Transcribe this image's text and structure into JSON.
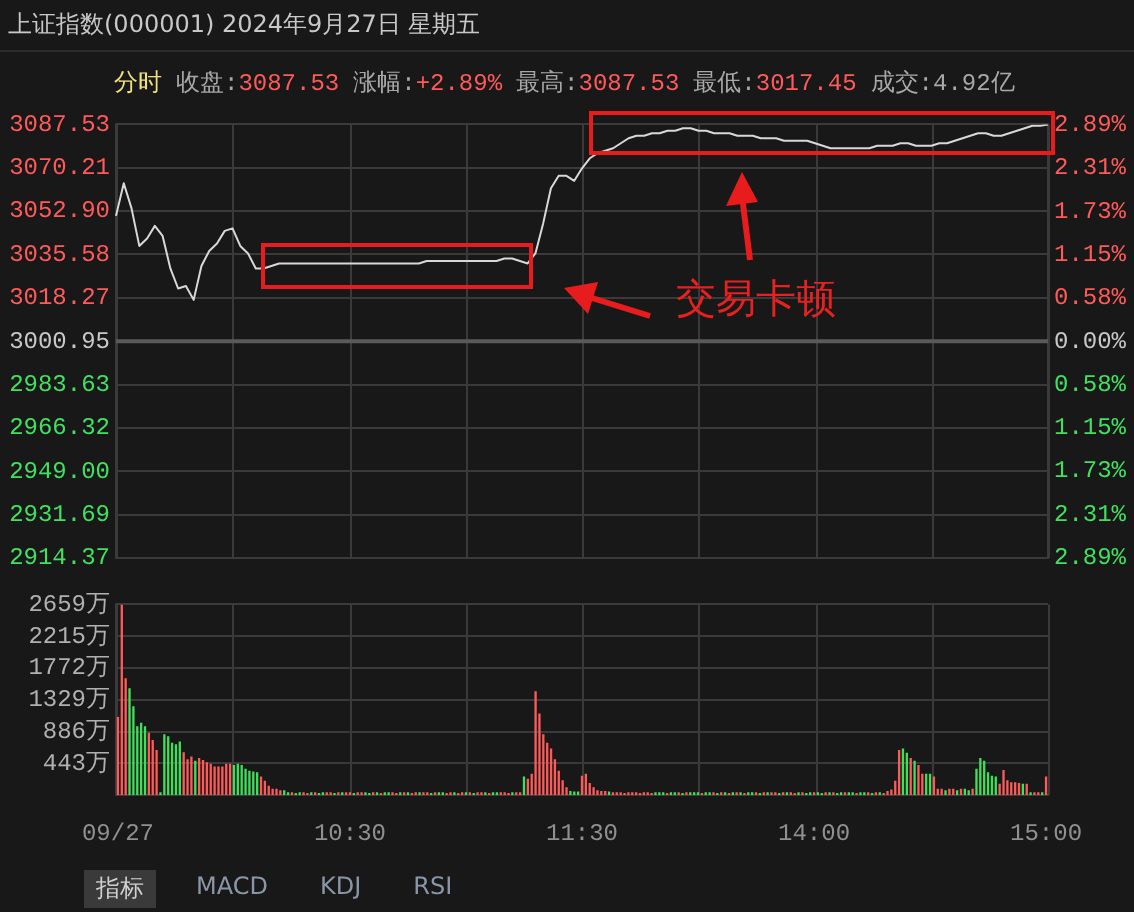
{
  "chart_data": [
    {
      "type": "line",
      "title": "上证指数(000001) 2024年9月27日 星期五",
      "subtitle": "分时 收盘:3087.53 涨幅:+2.89% 最高:3087.53 最低:3017.45 成交:4.92亿",
      "annotations": [
        "交易卡顿"
      ],
      "categories": [
        null,
        null,
        null,
        null,
        null,
        null,
        null,
        null,
        null,
        null,
        null,
        null,
        null,
        null,
        null,
        null,
        null,
        null,
        null,
        null,
        null,
        null,
        null,
        null,
        null,
        null,
        null,
        null,
        null,
        null,
        null,
        null,
        null,
        null,
        null,
        null,
        null,
        null,
        null,
        null,
        null,
        null,
        null,
        null,
        null,
        null,
        null,
        null,
        null,
        null,
        null,
        null,
        null,
        null,
        null,
        null,
        null,
        null,
        null,
        null,
        null,
        null,
        null,
        null,
        null,
        null,
        null,
        null,
        null,
        null,
        null,
        null,
        null,
        null,
        null,
        null,
        null,
        null,
        null,
        null,
        null,
        null,
        null,
        null,
        null,
        null,
        null,
        null,
        null,
        null,
        null,
        null,
        null,
        null,
        null,
        null,
        null,
        null,
        null,
        null,
        null,
        null,
        null,
        null,
        null,
        null,
        null,
        null,
        null,
        null,
        null,
        null,
        null,
        null,
        null,
        null,
        null,
        null,
        null,
        null,
        null
      ],
      "series": [
        {
          "color": "#d8d8d8",
          "values": [
            3051,
            3064,
            3054,
            3039,
            3042,
            3047,
            3043,
            3030,
            3022,
            3023,
            3017.45,
            3031,
            3037,
            3040,
            3045,
            3046,
            3039,
            3036,
            3030,
            3030,
            3031,
            3032,
            3032,
            3032,
            3032,
            3032,
            3032,
            3032,
            3032,
            3032,
            3032,
            3032,
            3032,
            3032,
            3032,
            3032,
            3032,
            3032,
            3032,
            3032,
            3033,
            3033,
            3033,
            3033,
            3033,
            3033,
            3033,
            3033,
            3033,
            3033,
            3034,
            3034,
            3033,
            3032,
            3036,
            3048,
            3062,
            3067,
            3067,
            3065,
            3070,
            3074,
            3076,
            3077,
            3078,
            3080,
            3082,
            3083,
            3083,
            3084,
            3084,
            3085,
            3085,
            3086,
            3086,
            3085,
            3085,
            3084,
            3084,
            3084,
            3083,
            3083,
            3083,
            3082,
            3082,
            3082,
            3081,
            3081,
            3081,
            3081,
            3080,
            3079,
            3078,
            3078,
            3078,
            3078,
            3078,
            3078,
            3079,
            3079,
            3079,
            3080,
            3080,
            3079,
            3079,
            3079,
            3080,
            3080,
            3081,
            3082,
            3083,
            3084,
            3084,
            3083,
            3083,
            3084,
            3085,
            3086,
            3087,
            3087,
            3087.53
          ]
        }
      ],
      "ylim": [
        2914.37,
        3087.53
      ],
      "yticks": [
        {
          "value": 2914.37,
          "label": "2914.37"
        },
        {
          "value": 2931.69,
          "label": "2931.69"
        },
        {
          "value": 2949,
          "label": "2949.00"
        },
        {
          "value": 2966.32,
          "label": "2966.32"
        },
        {
          "value": 2983.63,
          "label": "2983.63"
        },
        {
          "value": 3000.95,
          "label": "3000.95"
        },
        {
          "value": 3018.27,
          "label": "3018.27"
        },
        {
          "value": 3035.58,
          "label": "3035.58"
        },
        {
          "value": 3052.9,
          "label": "3052.90"
        },
        {
          "value": 3070.21,
          "label": "3070.21"
        },
        {
          "value": 3087.53,
          "label": "3087.53"
        }
      ],
      "y2lim": [
        -2.89,
        2.89
      ],
      "y2ticks": [
        {
          "value": -2.89,
          "label": "2.89%"
        },
        {
          "value": -2.31,
          "label": "2.31%"
        },
        {
          "value": -1.73,
          "label": "1.73%"
        },
        {
          "value": -1.15,
          "label": "1.15%"
        },
        {
          "value": -0.58,
          "label": "0.58%"
        },
        {
          "value": 0,
          "label": "0.00%"
        },
        {
          "value": 0.58,
          "label": "0.58%"
        },
        {
          "value": 1.15,
          "label": "1.15%"
        },
        {
          "value": 1.73,
          "label": "1.73%"
        },
        {
          "value": 2.31,
          "label": "2.31%"
        },
        {
          "value": 2.89,
          "label": "2.89%"
        }
      ],
      "ref_lines": [
        {
          "axis": "y",
          "value": 3000.95,
          "color": "#5a5a5a"
        }
      ],
      "grid": true,
      "marker": "none",
      "line_style": "solid"
    },
    {
      "type": "bar",
      "annotations": [
        "指标",
        "MACD",
        "KDJ",
        "RSI"
      ],
      "categories": [
        "09/27",
        null,
        null,
        null,
        null,
        null,
        null,
        null,
        null,
        null,
        null,
        null,
        null,
        null,
        null,
        null,
        null,
        null,
        null,
        null,
        null,
        null,
        null,
        null,
        null,
        null,
        null,
        null,
        null,
        null,
        null,
        null,
        null,
        null,
        null,
        null,
        null,
        null,
        null,
        null,
        null,
        null,
        null,
        null,
        null,
        null,
        null,
        null,
        null,
        null,
        null,
        null,
        null,
        null,
        null,
        null,
        null,
        null,
        null,
        null,
        "10:30",
        null,
        null,
        null,
        null,
        null,
        null,
        null,
        null,
        null,
        null,
        null,
        null,
        null,
        null,
        null,
        null,
        null,
        null,
        null,
        null,
        null,
        null,
        null,
        null,
        null,
        null,
        null,
        null,
        null,
        null,
        null,
        null,
        null,
        null,
        null,
        null,
        null,
        null,
        null,
        null,
        null,
        null,
        null,
        null,
        null,
        null,
        null,
        null,
        null,
        null,
        null,
        null,
        null,
        null,
        null,
        null,
        null,
        null,
        null,
        "11:30",
        null,
        null,
        null,
        null,
        null,
        null,
        null,
        null,
        null,
        null,
        null,
        null,
        null,
        null,
        null,
        null,
        null,
        null,
        null,
        null,
        null,
        null,
        null,
        null,
        null,
        null,
        null,
        null,
        null,
        null,
        null,
        null,
        null,
        null,
        null,
        null,
        null,
        null,
        null,
        null,
        null,
        null,
        null,
        null,
        null,
        null,
        null,
        null,
        null,
        null,
        null,
        null,
        null,
        null,
        null,
        null,
        null,
        null,
        null,
        "14:00",
        null,
        null,
        null,
        null,
        null,
        null,
        null,
        null,
        null,
        null,
        null,
        null,
        null,
        null,
        null,
        null,
        null,
        null,
        null,
        null,
        null,
        null,
        null,
        null,
        null,
        null,
        null,
        null,
        null,
        null,
        null,
        null,
        null,
        null,
        null,
        null,
        null,
        null,
        null,
        null,
        null,
        null,
        null,
        null,
        null,
        null,
        null,
        null,
        null,
        null,
        null,
        null,
        null,
        null,
        null,
        null,
        null,
        null,
        null,
        "15:00"
      ],
      "values": [
        1090,
        2659,
        1630,
        1490,
        1240,
        960,
        1010,
        960,
        870,
        770,
        630,
        40,
        850,
        820,
        730,
        710,
        750,
        600,
        500,
        540,
        480,
        520,
        490,
        460,
        440,
        400,
        400,
        400,
        440,
        440,
        420,
        440,
        420,
        370,
        340,
        330,
        320,
        260,
        200,
        130,
        90,
        90,
        70,
        70,
        40,
        40,
        30,
        40,
        40,
        30,
        40,
        40,
        30,
        40,
        40,
        40,
        30,
        40,
        40,
        40,
        40,
        30,
        40,
        40,
        40,
        30,
        40,
        40,
        30,
        40,
        40,
        40,
        30,
        40,
        40,
        40,
        30,
        40,
        40,
        40,
        40,
        30,
        40,
        40,
        40,
        30,
        40,
        40,
        30,
        40,
        40,
        40,
        30,
        40,
        40,
        40,
        30,
        40,
        40,
        40,
        40,
        30,
        40,
        40,
        40,
        260,
        230,
        300,
        1450,
        1140,
        850,
        730,
        650,
        500,
        340,
        210,
        110,
        60,
        50,
        50,
        270,
        300,
        170,
        110,
        70,
        60,
        60,
        50,
        40,
        40,
        40,
        30,
        40,
        40,
        40,
        30,
        40,
        40,
        30,
        40,
        40,
        40,
        30,
        40,
        40,
        40,
        30,
        40,
        40,
        40,
        40,
        30,
        40,
        40,
        40,
        30,
        40,
        40,
        30,
        40,
        40,
        40,
        30,
        40,
        40,
        40,
        30,
        40,
        40,
        40,
        40,
        30,
        40,
        40,
        40,
        30,
        40,
        40,
        30,
        40,
        40,
        40,
        30,
        40,
        40,
        40,
        30,
        40,
        40,
        40,
        40,
        30,
        40,
        40,
        40,
        30,
        40,
        40,
        30,
        60,
        80,
        200,
        630,
        650,
        590,
        520,
        480,
        420,
        300,
        300,
        300,
        260,
        90,
        90,
        70,
        90,
        90,
        70,
        90,
        90,
        70,
        90,
        370,
        520,
        480,
        320,
        270,
        260,
        160,
        350,
        210,
        180,
        180,
        170,
        160,
        160,
        40,
        40,
        40,
        40,
        260
      ],
      "colors": [
        "#ff5a5a",
        "#ff5a5a",
        "#ff5a5a",
        "#3ee05a",
        "#3ee05a",
        "#3ee05a",
        "#3ee05a",
        "#3ee05a",
        "#ff5a5a",
        "#ff5a5a",
        "#ff5a5a",
        "#3ee05a",
        "#3ee05a",
        "#3ee05a",
        "#3ee05a",
        "#3ee05a",
        "#3ee05a",
        "#ff5a5a",
        "#ff5a5a",
        "#ff5a5a",
        "#3ee05a",
        "#ff5a5a",
        "#ff5a5a",
        "#ff5a5a",
        "#ff5a5a",
        "#ff5a5a",
        "#ff5a5a",
        "#ff5a5a",
        "#ff5a5a",
        "#ff5a5a",
        "#3ee05a",
        "#3ee05a",
        "#3ee05a",
        "#3ee05a",
        "#3ee05a",
        "#3ee05a",
        "#3ee05a",
        "#ff5a5a",
        "#ff5a5a",
        "#ff5a5a",
        "#ff5a5a",
        "#ff5a5a",
        "#ff5a5a",
        "#3ee05a",
        "#3ee05a",
        "#ff5a5a",
        "#3ee05a",
        "#3ee05a",
        "#ff5a5a",
        "#ff5a5a",
        "#3ee05a",
        "#ff5a5a",
        "#3ee05a",
        "#3ee05a",
        "#ff5a5a",
        "#ff5a5a",
        "#3ee05a",
        "#ff5a5a",
        "#3ee05a",
        "#ff5a5a",
        "#ff5a5a",
        "#3ee05a",
        "#ff5a5a",
        "#ff5a5a",
        "#3ee05a",
        "#3ee05a",
        "#ff5a5a",
        "#3ee05a",
        "#ff5a5a",
        "#3ee05a",
        "#3ee05a",
        "#ff5a5a",
        "#ff5a5a",
        "#3ee05a",
        "#ff5a5a",
        "#3ee05a",
        "#ff5a5a",
        "#ff5a5a",
        "#3ee05a",
        "#ff5a5a",
        "#ff5a5a",
        "#3ee05a",
        "#ff5a5a",
        "#3ee05a",
        "#3ee05a",
        "#ff5a5a",
        "#ff5a5a",
        "#3ee05a",
        "#ff5a5a",
        "#ff5a5a",
        "#3ee05a",
        "#ff5a5a",
        "#3ee05a",
        "#ff5a5a",
        "#ff5a5a",
        "#3ee05a",
        "#ff5a5a",
        "#3ee05a",
        "#3ee05a",
        "#ff5a5a",
        "#ff5a5a",
        "#ff5a5a",
        "#3ee05a",
        "#ff5a5a",
        "#ff5a5a",
        "#3ee05a",
        "#ff5a5a",
        "#ff5a5a",
        "#ff5a5a",
        "#ff5a5a",
        "#ff5a5a",
        "#ff5a5a",
        "#ff5a5a",
        "#ff5a5a",
        "#ff5a5a",
        "#ff5a5a",
        "#ff5a5a",
        "#3ee05a",
        "#3ee05a",
        "#3ee05a",
        "#ff5a5a",
        "#ff5a5a",
        "#ff5a5a",
        "#ff5a5a",
        "#ff5a5a",
        "#ff5a5a",
        "#ff5a5a",
        "#3ee05a",
        "#ff5a5a",
        "#ff5a5a",
        "#ff5a5a",
        "#ff5a5a",
        "#ff5a5a",
        "#ff5a5a",
        "#ff5a5a",
        "#ff5a5a",
        "#ff5a5a",
        "#ff5a5a",
        "#ff5a5a",
        "#3ee05a",
        "#3ee05a",
        "#3ee05a",
        "#ff5a5a",
        "#3ee05a",
        "#3ee05a",
        "#ff5a5a",
        "#3ee05a",
        "#ff5a5a",
        "#3ee05a",
        "#3ee05a",
        "#3ee05a",
        "#ff5a5a",
        "#3ee05a",
        "#3ee05a",
        "#ff5a5a",
        "#3ee05a",
        "#ff5a5a",
        "#3ee05a",
        "#ff5a5a",
        "#3ee05a",
        "#ff5a5a",
        "#3ee05a",
        "#ff5a5a",
        "#3ee05a",
        "#3ee05a",
        "#ff5a5a",
        "#3ee05a",
        "#ff5a5a",
        "#3ee05a",
        "#ff5a5a",
        "#ff5a5a",
        "#3ee05a",
        "#ff5a5a",
        "#3ee05a",
        "#ff5a5a",
        "#ff5a5a",
        "#3ee05a",
        "#ff5a5a",
        "#3ee05a",
        "#3ee05a",
        "#ff5a5a",
        "#3ee05a",
        "#3ee05a",
        "#ff5a5a",
        "#3ee05a",
        "#ff5a5a",
        "#3ee05a",
        "#3ee05a",
        "#ff5a5a",
        "#3ee05a",
        "#3ee05a",
        "#ff5a5a",
        "#3ee05a",
        "#3ee05a",
        "#ff5a5a",
        "#3ee05a",
        "#ff5a5a",
        "#3ee05a",
        "#ff5a5a",
        "#ff5a5a",
        "#ff5a5a",
        "#ff5a5a",
        "#ff5a5a",
        "#3ee05a",
        "#3ee05a",
        "#ff5a5a",
        "#3ee05a",
        "#ff5a5a",
        "#ff5a5a",
        "#3ee05a",
        "#3ee05a",
        "#ff5a5a",
        "#ff5a5a",
        "#ff5a5a",
        "#3ee05a",
        "#ff5a5a",
        "#ff5a5a",
        "#3ee05a",
        "#ff5a5a",
        "#3ee05a",
        "#3ee05a",
        "#ff5a5a",
        "#3ee05a",
        "#3ee05a",
        "#3ee05a",
        "#3ee05a",
        "#3ee05a",
        "#3ee05a",
        "#ff5a5a",
        "#ff5a5a",
        "#ff5a5a",
        "#ff5a5a",
        "#ff5a5a",
        "#ff5a5a",
        "#3ee05a",
        "#ff5a5a",
        "#3ee05a",
        "#ff5a5a",
        "#ff5a5a",
        "#3ee05a",
        "#ff5a5a"
      ],
      "ylim": [
        0,
        2659
      ],
      "yticks": [
        {
          "value": 443,
          "label": "443万"
        },
        {
          "value": 886,
          "label": "886万"
        },
        {
          "value": 1329,
          "label": "1329万"
        },
        {
          "value": 1772,
          "label": "1772万"
        },
        {
          "value": 2215,
          "label": "2215万"
        },
        {
          "value": 2659,
          "label": "2659万"
        }
      ],
      "grid": true
    }
  ]
}
